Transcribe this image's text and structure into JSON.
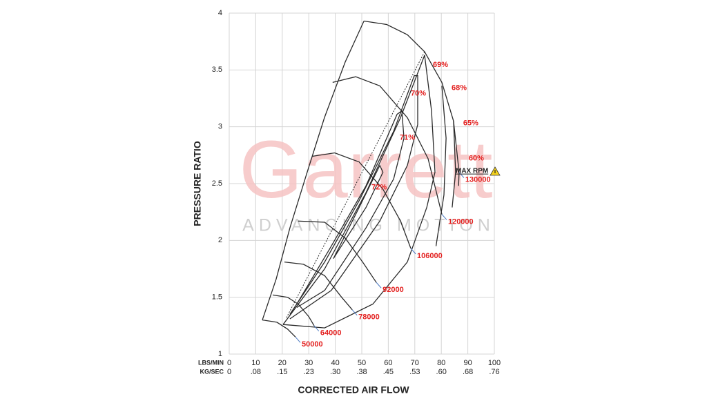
{
  "chart_data": {
    "type": "line",
    "xlabel": "CORRECTED AIR FLOW",
    "ylabel": "PRESSURE RATIO",
    "x_axis_names": [
      "LBS/MIN",
      "KG/SEC"
    ],
    "xlim": [
      0,
      100
    ],
    "ylim": [
      1,
      4
    ],
    "xticks": [
      0,
      10,
      20,
      30,
      40,
      50,
      60,
      70,
      80,
      90,
      100
    ],
    "x2ticks": [
      0,
      {
        "value": 10,
        "label": ".08"
      },
      {
        "value": 20,
        "label": ".15"
      },
      {
        "value": 30,
        "label": ".23"
      },
      {
        "value": 40,
        "label": ".30"
      },
      {
        "value": 50,
        "label": ".38"
      },
      {
        "value": 60,
        "label": ".45"
      },
      {
        "value": 70,
        "label": ".53"
      },
      {
        "value": 80,
        "label": ".60"
      },
      {
        "value": 90,
        "label": ".68"
      },
      {
        "value": 100,
        "label": ".76"
      }
    ],
    "yticks": [
      1,
      1.5,
      2,
      2.5,
      3,
      3.5,
      4
    ],
    "grid": true,
    "watermark": {
      "title": "Garrett",
      "subtitle": "ADVANCING MOTION"
    },
    "line_color": "#2a2a2a",
    "label_color": "#e3201f",
    "surge_line": {
      "x": [
        12.5,
        17.7,
        22.9,
        29.4,
        35.9,
        43.75,
        50.8
      ],
      "y": [
        1.3,
        1.66,
        2.11,
        2.6,
        3.08,
        3.57,
        3.93
      ]
    },
    "peak_efficiency_line": {
      "x": [
        21.6,
        73.7
      ],
      "y": [
        1.32,
        3.66
      ]
    },
    "speed_lines": [
      {
        "name": "50000",
        "x": [
          12.5,
          18,
          22,
          25
        ],
        "y": [
          1.3,
          1.28,
          1.22,
          1.15
        ]
      },
      {
        "name": "64000",
        "x": [
          16.4,
          22,
          26,
          30,
          32
        ],
        "y": [
          1.52,
          1.5,
          1.44,
          1.33,
          1.25
        ]
      },
      {
        "name": "78000",
        "x": [
          20.8,
          28,
          36,
          42.4,
          46.4
        ],
        "y": [
          1.81,
          1.79,
          1.69,
          1.5,
          1.39
        ]
      },
      {
        "name": "92000",
        "x": [
          26,
          36,
          43.75,
          50.3,
          55.5
        ],
        "y": [
          2.17,
          2.16,
          2.02,
          1.81,
          1.63
        ]
      },
      {
        "name": "106000",
        "x": [
          31.25,
          39.8,
          49,
          58,
          64.6,
          68.5
        ],
        "y": [
          2.74,
          2.77,
          2.69,
          2.45,
          2.17,
          1.93
        ]
      },
      {
        "name": "120000",
        "x": [
          39,
          47.7,
          56.8,
          67.2,
          75,
          80.2
        ],
        "y": [
          3.39,
          3.44,
          3.36,
          3.08,
          2.72,
          2.23
        ]
      },
      {
        "name": "130000",
        "x": [
          50.8,
          59.4,
          67.2,
          73.7,
          80.2,
          84.6,
          86.7
        ],
        "y": [
          3.93,
          3.9,
          3.81,
          3.66,
          3.39,
          3.05,
          2.6
        ]
      }
    ],
    "efficiency_islands": [
      {
        "name": "72%",
        "x": [
          39.3,
          49,
          56.8,
          58,
          51.6,
          39.3
        ],
        "y": [
          1.84,
          2.29,
          2.66,
          2.6,
          2.29,
          1.84
        ]
      },
      {
        "name": "71%",
        "x": [
          25.5,
          38,
          51.6,
          63.3,
          65.1,
          65.9,
          62,
          51.6,
          36,
          25.5
        ],
        "y": [
          1.44,
          1.93,
          2.48,
          3.11,
          3.14,
          2.9,
          2.54,
          2.11,
          1.56,
          1.41
        ]
      },
      {
        "name": "70%",
        "x": [
          22.9,
          36,
          49,
          62,
          69.8,
          71.1,
          71.1,
          67.2,
          56.8,
          38.5,
          22.9
        ],
        "y": [
          1.35,
          1.81,
          2.35,
          2.96,
          3.45,
          3.45,
          3.02,
          2.66,
          2.17,
          1.56,
          1.31
        ]
      },
      {
        "name": "69%",
        "x": [
          20.3,
          36,
          51.6,
          64.6,
          73.7,
          76.3,
          77.6,
          74.5,
          67.2,
          54.2,
          36,
          20.3
        ],
        "y": [
          1.26,
          1.75,
          2.42,
          3.08,
          3.63,
          3.14,
          2.6,
          2.29,
          1.81,
          1.44,
          1.23,
          1.26
        ]
      },
      {
        "name": "68%",
        "x": [
          80.2,
          81.8,
          81,
          78
        ],
        "y": [
          3.36,
          2.9,
          2.4,
          1.95
        ]
      },
      {
        "name": "65%",
        "x": [
          84.6,
          85.4,
          84.1
        ],
        "y": [
          3.05,
          2.6,
          2.29
        ]
      },
      {
        "name": "60%",
        "x": [
          86.7,
          86.5
        ],
        "y": [
          2.6,
          2.48
        ]
      }
    ],
    "annotation": "MAX RPM"
  }
}
